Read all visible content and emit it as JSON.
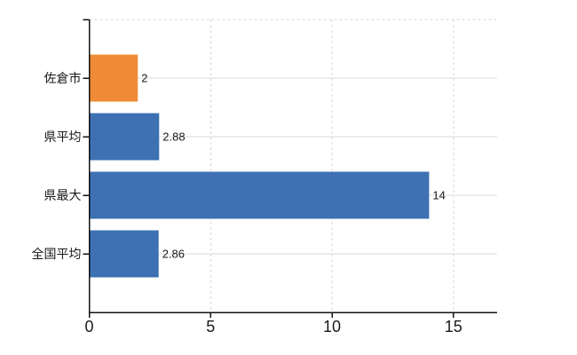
{
  "chart_data": {
    "type": "bar",
    "orientation": "horizontal",
    "title": "",
    "xlabel": "",
    "ylabel": "",
    "categories": [
      "佐倉市",
      "県平均",
      "県最大",
      "全国平均"
    ],
    "values": [
      2,
      2.88,
      14,
      2.86
    ],
    "value_labels": [
      "2",
      "2.88",
      "14",
      "2.86"
    ],
    "x_ticks": [
      0,
      5,
      10,
      15
    ],
    "x_tick_labels": [
      "0",
      "5",
      "10",
      "15"
    ],
    "xlim": [
      0,
      16.8
    ],
    "grid": {
      "vertical_dashed_at": [
        5,
        10,
        15
      ],
      "top_dashed_line": true,
      "horizontal_solid_at_category_centers": true
    },
    "legend": "none",
    "colors": {
      "bar_colors": [
        "#EF8B36",
        "#3E71B3",
        "#3E71B3",
        "#3E71B3"
      ],
      "axis": "#111111",
      "grid_solid": "#d5dcd3",
      "grid_dashed": "#dcd6dc",
      "text": "#1a1a1a",
      "background": "#ffffff"
    }
  }
}
